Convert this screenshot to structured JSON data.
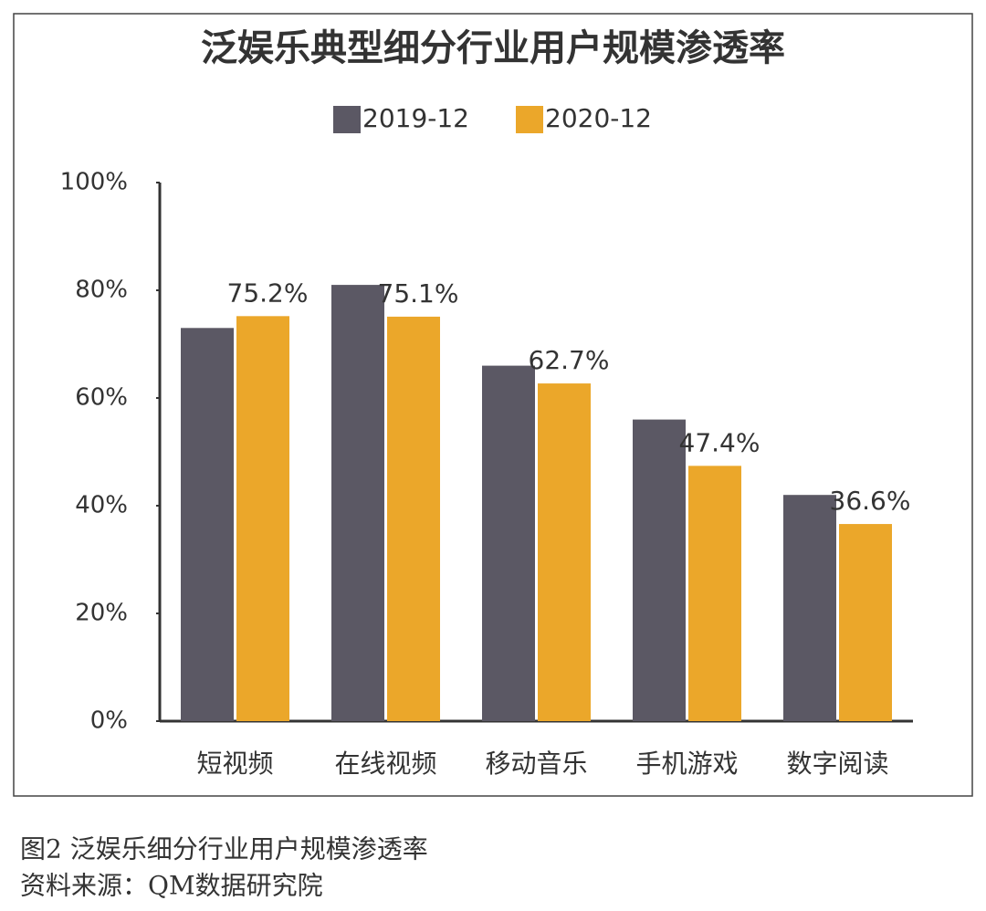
{
  "chart_data": {
    "type": "bar",
    "title": "泛娱乐典型细分行业用户规模渗透率",
    "categories": [
      "短视频",
      "在线视频",
      "移动音乐",
      "手机游戏",
      "数字阅读"
    ],
    "series": [
      {
        "name": "2019-12",
        "color": "#5b5864",
        "values": [
          73,
          81,
          66,
          56,
          42
        ]
      },
      {
        "name": "2020-12",
        "color": "#eba72a",
        "values": [
          75.2,
          75.1,
          62.7,
          47.4,
          36.6
        ],
        "value_labels": [
          "75.2%",
          "75.1%",
          "62.7%",
          "47.4%",
          "36.6%"
        ]
      }
    ],
    "ylim": [
      0,
      100
    ],
    "yticks": [
      {
        "value": 0,
        "label": "0%"
      },
      {
        "value": 20,
        "label": "20%"
      },
      {
        "value": 40,
        "label": "40%"
      },
      {
        "value": 60,
        "label": "60%"
      },
      {
        "value": 80,
        "label": "80%"
      },
      {
        "value": 100,
        "label": "100%"
      }
    ],
    "legend": "top"
  },
  "caption": [
    "图2 泛娱乐细分行业用户规模渗透率",
    "资料来源：QM数据研究院"
  ]
}
